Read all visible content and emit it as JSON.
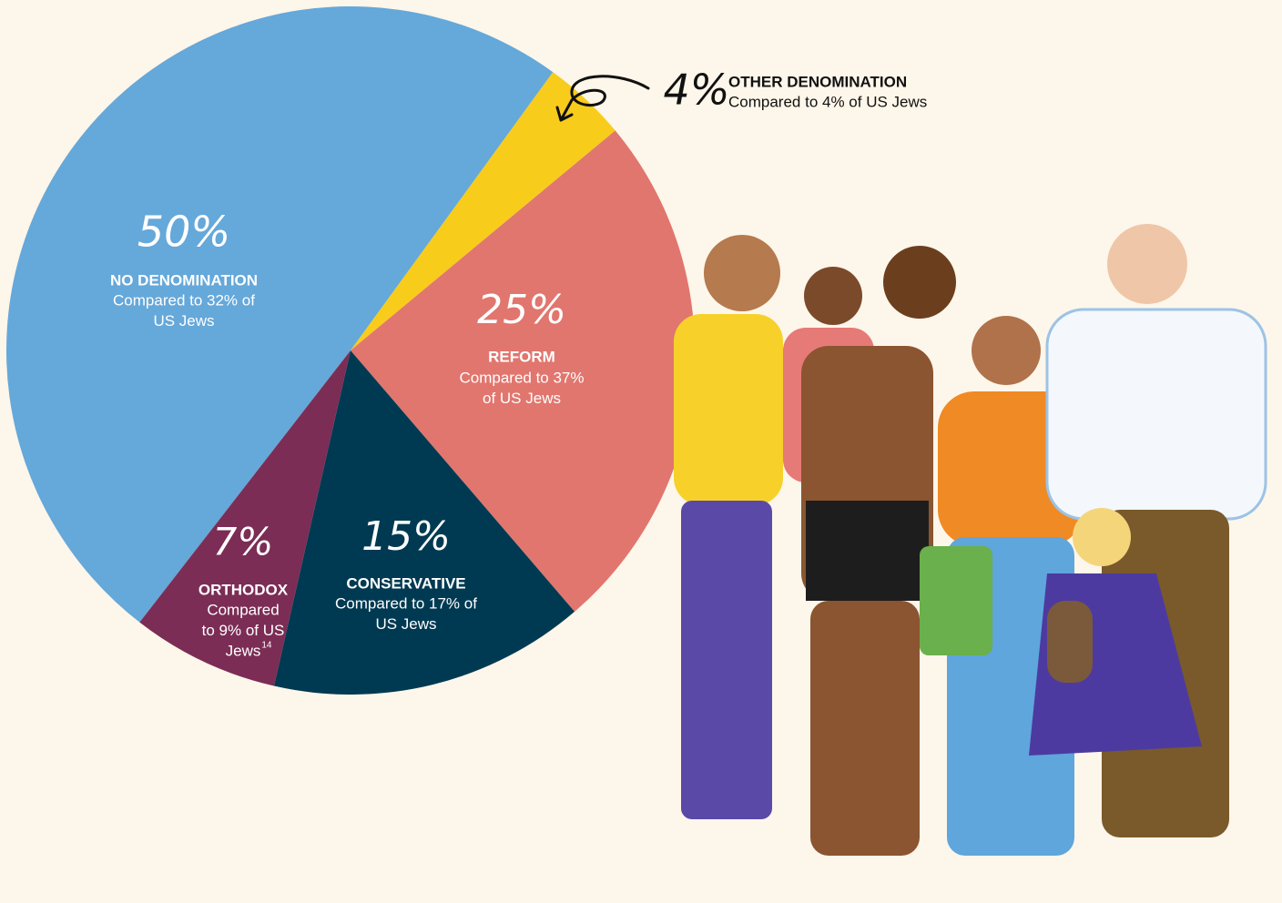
{
  "chart_data": {
    "type": "pie",
    "categories": [
      "NO DENOMINATION",
      "OTHER DENOMINATION",
      "REFORM",
      "CONSERVATIVE",
      "ORTHODOX"
    ],
    "values": [
      50,
      4,
      25,
      15,
      7
    ],
    "value_labels": [
      "50%",
      "4%",
      "25%",
      "15%",
      "7%"
    ],
    "colors": [
      "#65a8da",
      "#f8cc1b",
      "#e1766e",
      "#003a52",
      "#7b2d55"
    ],
    "details": [
      [
        "Compared to 32% of",
        "US Jews"
      ],
      [
        "Compared to 4% of US Jews"
      ],
      [
        "Compared to 37%",
        "of US Jews"
      ],
      [
        "Compared to 17% of",
        "US Jews"
      ],
      [
        "Compared",
        "to 9% of US",
        "Jews"
      ]
    ],
    "footnote": "14"
  }
}
